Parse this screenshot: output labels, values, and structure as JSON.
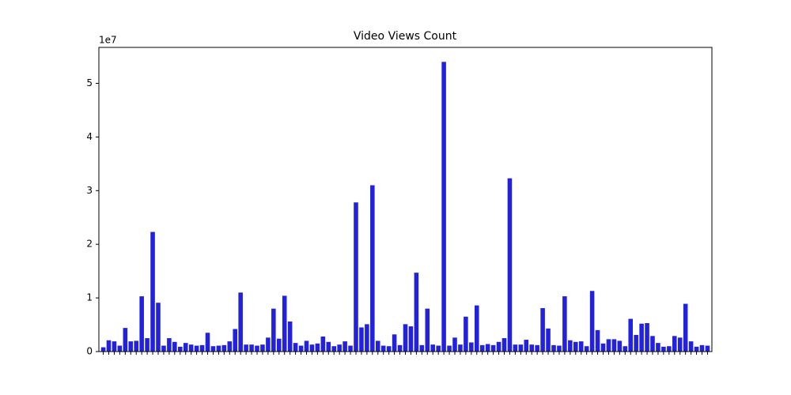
{
  "chart_data": {
    "type": "bar",
    "title": "Video Views Count",
    "offset_text": "1e7",
    "categories": [
      null,
      null,
      null,
      null,
      null,
      null,
      null,
      null,
      null,
      null,
      null,
      null,
      null,
      null,
      null,
      null,
      null,
      null,
      null,
      null,
      null,
      null,
      null,
      null,
      null,
      null,
      null,
      null,
      null,
      null,
      null,
      null,
      null,
      null,
      null,
      null,
      null,
      null,
      null,
      null,
      null,
      null,
      null,
      null,
      null,
      null,
      null,
      null,
      null,
      null,
      null,
      null,
      null,
      null,
      null,
      null,
      null,
      null,
      null,
      null,
      null,
      null,
      null,
      null,
      null,
      null,
      null,
      null,
      null,
      null,
      null,
      null,
      null,
      null,
      null,
      null,
      null,
      null,
      null,
      null,
      null,
      null,
      null,
      null,
      null,
      null,
      null,
      null,
      null,
      null,
      null,
      null,
      null,
      null,
      null,
      null,
      null,
      null,
      null,
      null,
      null,
      null,
      null,
      null,
      null,
      null,
      null,
      null,
      null,
      null,
      null
    ],
    "values": [
      800000,
      2100000,
      1900000,
      1100000,
      4400000,
      1900000,
      2000000,
      10300000,
      2500000,
      22300000,
      9100000,
      1100000,
      2500000,
      1800000,
      900000,
      1600000,
      1300000,
      1100000,
      1200000,
      3500000,
      1000000,
      1100000,
      1200000,
      1900000,
      4200000,
      11000000,
      1300000,
      1300000,
      1100000,
      1300000,
      2600000,
      8000000,
      2400000,
      10400000,
      5600000,
      1600000,
      1100000,
      2000000,
      1300000,
      1500000,
      2800000,
      1800000,
      1000000,
      1300000,
      1900000,
      1100000,
      27800000,
      4500000,
      5100000,
      31000000,
      2000000,
      1100000,
      1000000,
      3200000,
      1200000,
      5100000,
      4700000,
      14700000,
      1200000,
      8000000,
      1300000,
      1100000,
      54000000,
      1100000,
      2600000,
      1300000,
      6500000,
      1700000,
      8600000,
      1200000,
      1400000,
      1200000,
      1800000,
      2500000,
      32300000,
      1300000,
      1300000,
      2200000,
      1300000,
      1200000,
      8100000,
      4300000,
      1200000,
      1100000,
      10300000,
      2100000,
      1800000,
      1900000,
      1000000,
      11300000,
      4000000,
      1500000,
      2300000,
      2300000,
      2000000,
      1000000,
      6100000,
      3100000,
      5200000,
      5300000,
      2900000,
      1600000,
      900000,
      1000000,
      2900000,
      2600000,
      8900000,
      1900000,
      900000,
      1200000,
      1100000
    ],
    "color": "#2222dd",
    "ylim": [
      0,
      56700000
    ],
    "yticks": [
      0,
      {
        "value": 10000000,
        "label": "1"
      },
      {
        "value": 20000000,
        "label": "2"
      },
      {
        "value": 30000000,
        "label": "3"
      },
      {
        "value": 40000000,
        "label": "4"
      },
      {
        "value": 50000000,
        "label": "5"
      }
    ]
  }
}
